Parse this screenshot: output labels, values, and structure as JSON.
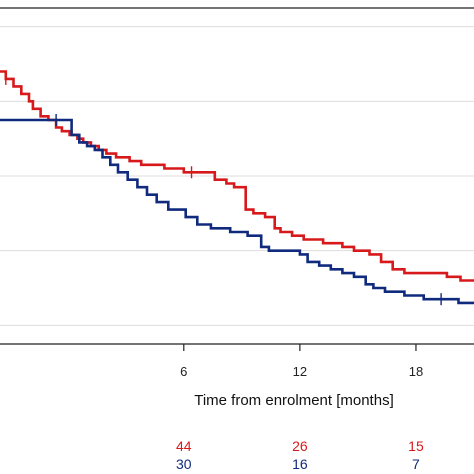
{
  "chart_data": {
    "type": "line",
    "title": "",
    "xlabel": "Time from enrolment [months]",
    "ylabel": "",
    "xlim": [
      -3.5,
      21
    ],
    "ylim": [
      0.15,
      1.05
    ],
    "grid": true,
    "x_ticks": [
      6,
      12,
      18
    ],
    "x_tick_labels": [
      "6",
      "12",
      "18"
    ],
    "y_gridlines": [
      0.2,
      0.4,
      0.6,
      0.8,
      1.0
    ],
    "colors": {
      "red": "#d7191c",
      "blue": "#102a7e",
      "axis": "#222222",
      "grid": "#dddddd"
    },
    "series": [
      {
        "key": "red",
        "points": [
          [
            -3.5,
            0.88
          ],
          [
            -3.2,
            0.86
          ],
          [
            -2.8,
            0.84
          ],
          [
            -2.4,
            0.82
          ],
          [
            -2.0,
            0.8
          ],
          [
            -1.8,
            0.78
          ],
          [
            -1.4,
            0.76
          ],
          [
            -1.0,
            0.75
          ],
          [
            -0.6,
            0.73
          ],
          [
            -0.3,
            0.72
          ],
          [
            0.1,
            0.71
          ],
          [
            0.5,
            0.7
          ],
          [
            0.8,
            0.69
          ],
          [
            1.2,
            0.68
          ],
          [
            1.6,
            0.67
          ],
          [
            2.0,
            0.66
          ],
          [
            2.5,
            0.65
          ],
          [
            3.2,
            0.64
          ],
          [
            3.8,
            0.63
          ],
          [
            5.0,
            0.62
          ],
          [
            6.0,
            0.61
          ],
          [
            7.6,
            0.59
          ],
          [
            8.2,
            0.58
          ],
          [
            8.6,
            0.57
          ],
          [
            9.2,
            0.51
          ],
          [
            9.6,
            0.5
          ],
          [
            10.2,
            0.49
          ],
          [
            10.7,
            0.46
          ],
          [
            11.0,
            0.45
          ],
          [
            11.6,
            0.44
          ],
          [
            12.2,
            0.43
          ],
          [
            13.2,
            0.42
          ],
          [
            14.2,
            0.41
          ],
          [
            14.8,
            0.4
          ],
          [
            15.6,
            0.39
          ],
          [
            16.2,
            0.37
          ],
          [
            16.8,
            0.35
          ],
          [
            17.4,
            0.34
          ],
          [
            18.0,
            0.34
          ],
          [
            19.6,
            0.33
          ],
          [
            20.3,
            0.32
          ],
          [
            21,
            0.32
          ]
        ],
        "censored": [
          [
            -3.2,
            0.86
          ],
          [
            6.4,
            0.61
          ]
        ]
      },
      {
        "key": "blue",
        "points": [
          [
            -3.5,
            0.75
          ],
          [
            -0.1,
            0.75
          ],
          [
            0.2,
            0.71
          ],
          [
            0.6,
            0.69
          ],
          [
            1.0,
            0.68
          ],
          [
            1.4,
            0.67
          ],
          [
            1.8,
            0.65
          ],
          [
            2.2,
            0.63
          ],
          [
            2.6,
            0.61
          ],
          [
            3.1,
            0.59
          ],
          [
            3.6,
            0.57
          ],
          [
            4.1,
            0.55
          ],
          [
            4.6,
            0.53
          ],
          [
            5.2,
            0.51
          ],
          [
            6.1,
            0.49
          ],
          [
            6.7,
            0.47
          ],
          [
            7.4,
            0.46
          ],
          [
            8.4,
            0.45
          ],
          [
            9.3,
            0.44
          ],
          [
            10.0,
            0.41
          ],
          [
            10.4,
            0.4
          ],
          [
            11.0,
            0.4
          ],
          [
            12.0,
            0.39
          ],
          [
            12.4,
            0.37
          ],
          [
            13.0,
            0.36
          ],
          [
            13.6,
            0.35
          ],
          [
            14.2,
            0.34
          ],
          [
            14.8,
            0.33
          ],
          [
            15.4,
            0.31
          ],
          [
            15.8,
            0.3
          ],
          [
            16.4,
            0.29
          ],
          [
            17.4,
            0.28
          ],
          [
            18.4,
            0.27
          ],
          [
            19.2,
            0.27
          ],
          [
            20.2,
            0.26
          ],
          [
            21,
            0.26
          ]
        ],
        "censored": [
          [
            -0.6,
            0.75
          ],
          [
            19.3,
            0.27
          ]
        ]
      }
    ],
    "risk_table": [
      {
        "series": "red",
        "values": [
          "44",
          "26",
          "15"
        ]
      },
      {
        "series": "blue",
        "values": [
          "30",
          "16",
          "7"
        ]
      }
    ]
  }
}
